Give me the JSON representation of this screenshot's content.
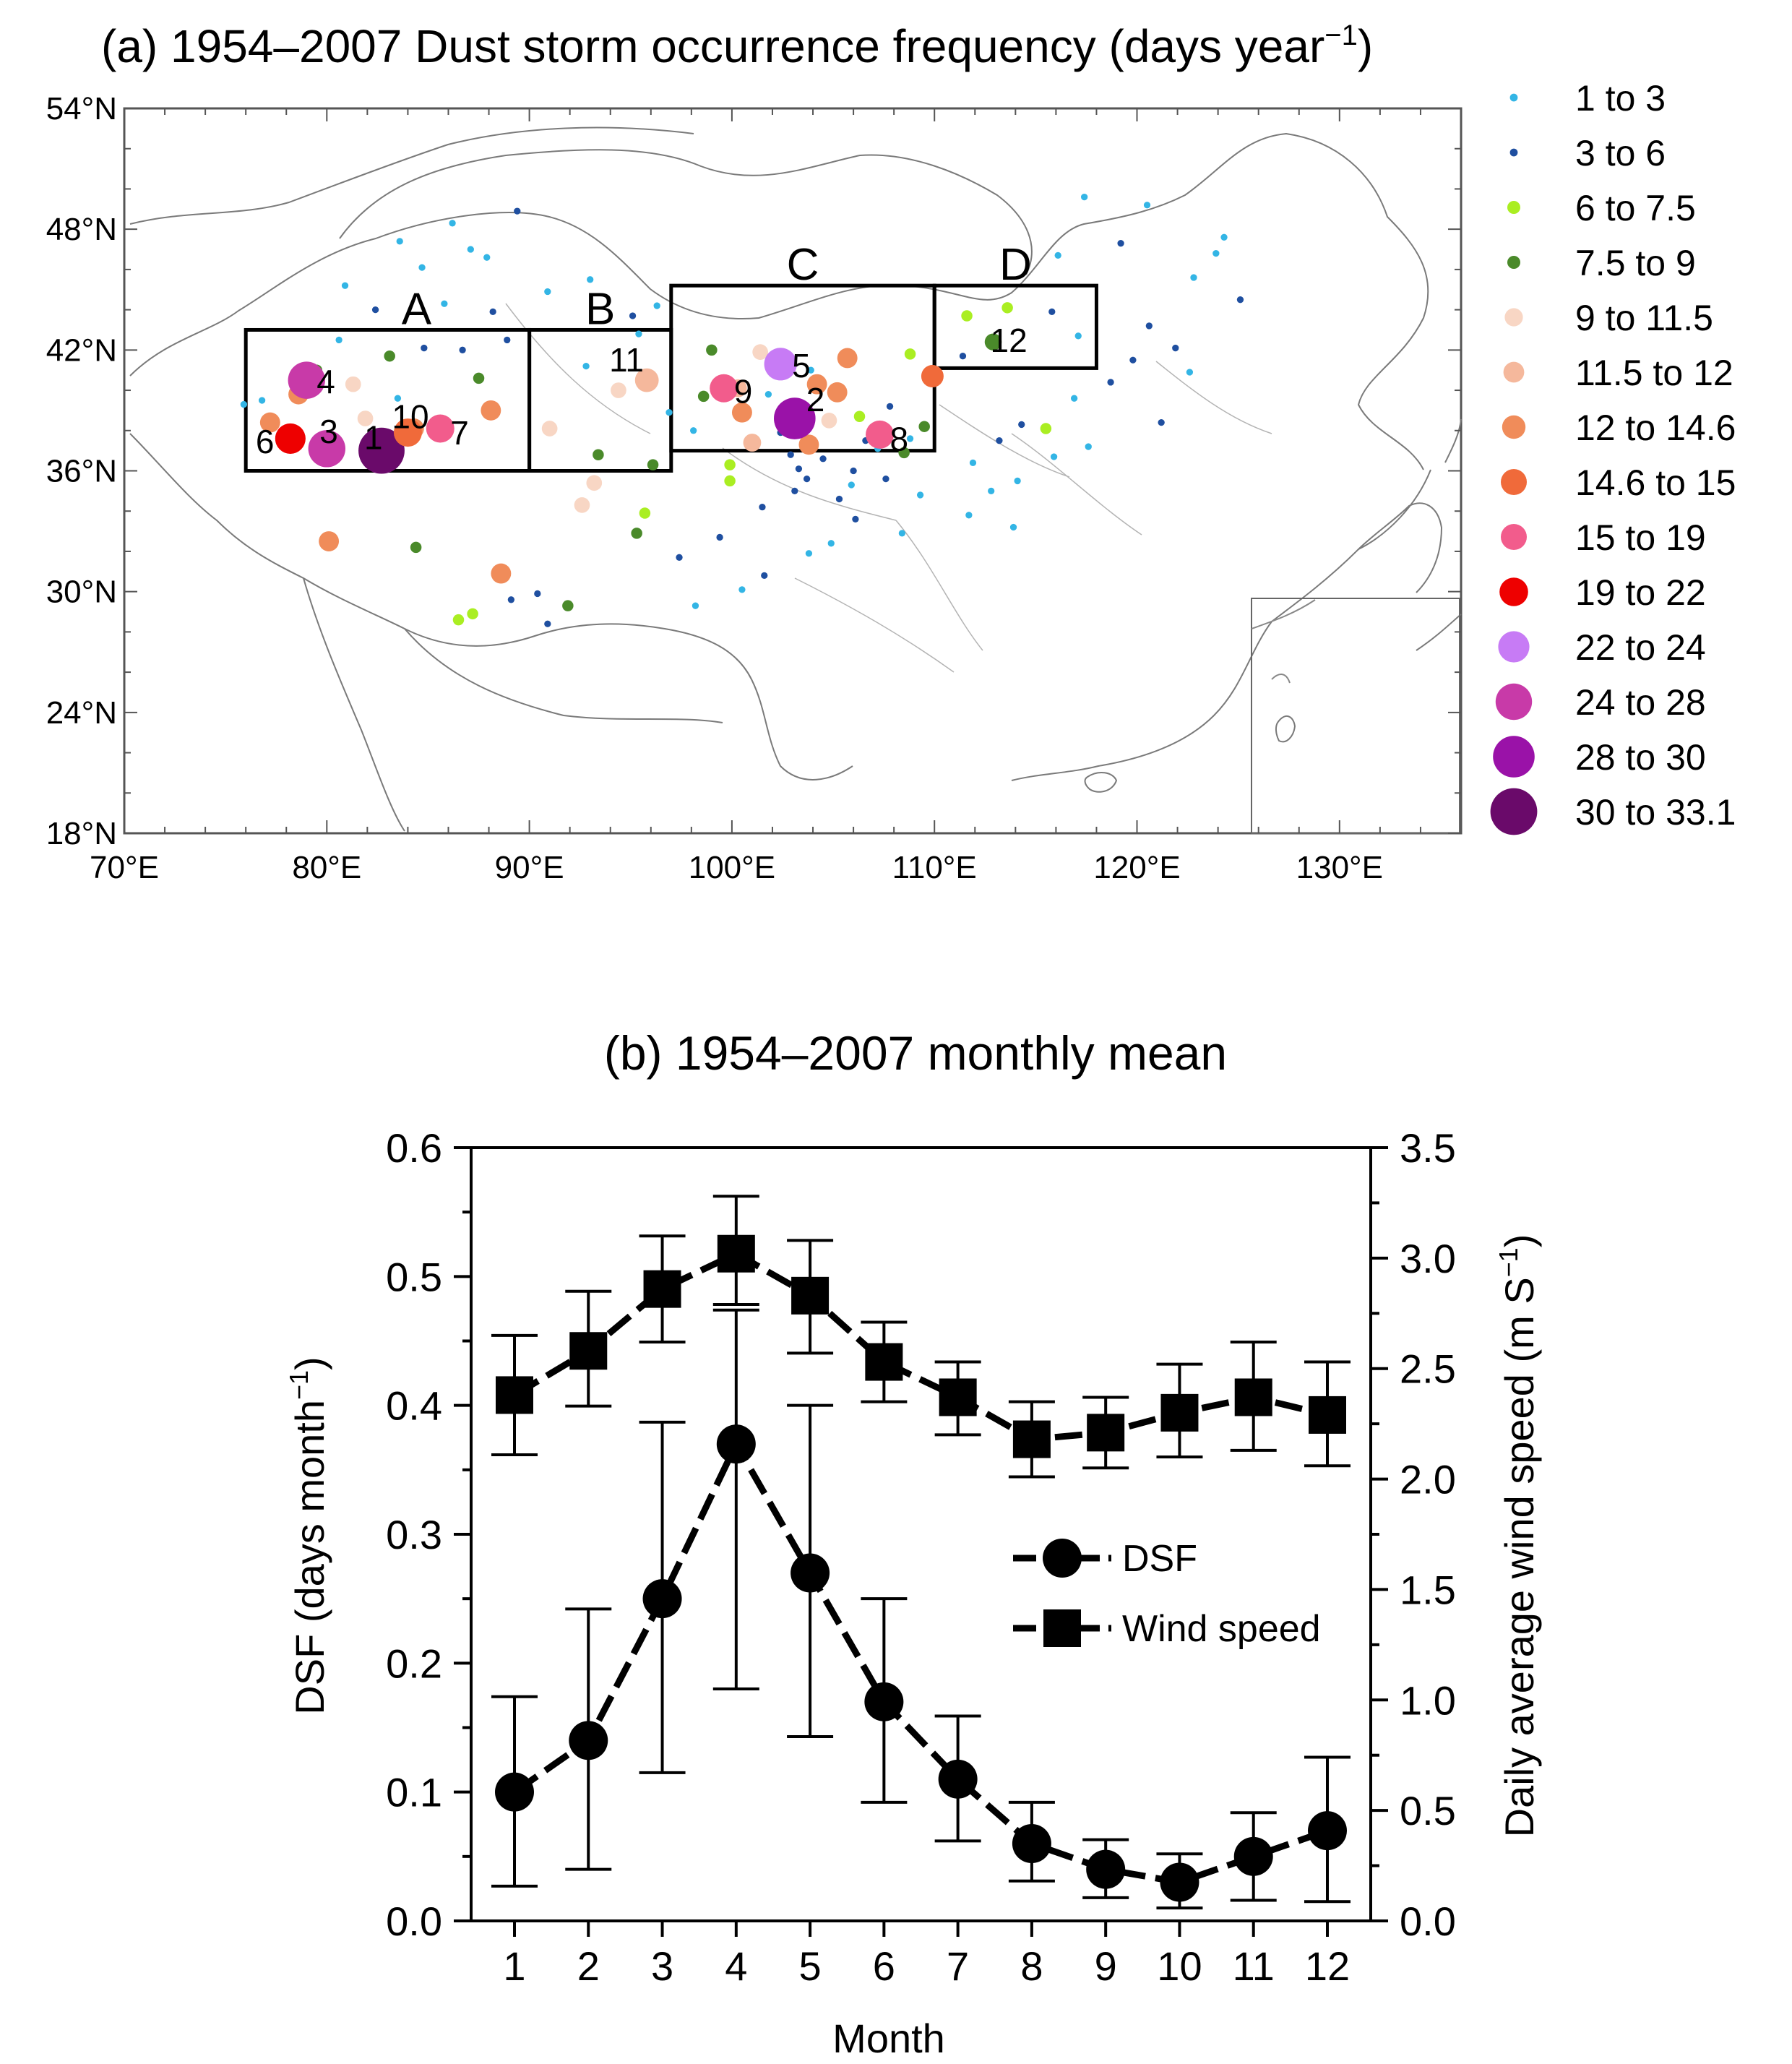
{
  "chart_data": [
    {
      "type": "map",
      "title": "(a) 1954–2007 Dust storm occurrence frequency (days year",
      "title_suffix": ")",
      "title_superscript": "−1",
      "lon_ticks": [
        "70°E",
        "80°E",
        "90°E",
        "100°E",
        "110°E",
        "120°E",
        "130°E"
      ],
      "lon_values": [
        70,
        80,
        90,
        100,
        110,
        120,
        130
      ],
      "lat_ticks": [
        "54°N",
        "48°N",
        "42°N",
        "36°N",
        "30°N",
        "24°N",
        "18°N"
      ],
      "lat_values": [
        54,
        48,
        42,
        36,
        30,
        24,
        18
      ],
      "lon_range": [
        70,
        136
      ],
      "lat_range": [
        18,
        54
      ],
      "legend": [
        {
          "label": "1  to  3",
          "color": "#33b5e5",
          "size": 3
        },
        {
          "label": "3  to  6",
          "color": "#1f4fa0",
          "size": 3
        },
        {
          "label": "6  to  7.5",
          "color": "#aaee22",
          "size": 5
        },
        {
          "label": "7.5  to  9",
          "color": "#4a8a2a",
          "size": 5
        },
        {
          "label": "9  to  11.5",
          "color": "#f8d6c4",
          "size": 7
        },
        {
          "label": "11.5  to  12",
          "color": "#f5b89c",
          "size": 8
        },
        {
          "label": "12  to  14.6",
          "color": "#f08c5a",
          "size": 9
        },
        {
          "label": "14.6  to  15",
          "color": "#f06a3a",
          "size": 10
        },
        {
          "label": "15  to  19",
          "color": "#f25c8c",
          "size": 10
        },
        {
          "label": "19  to  22",
          "color": "#ee0000",
          "size": 11
        },
        {
          "label": "22  to  24",
          "color": "#c77bf5",
          "size": 12
        },
        {
          "label": "24  to  28",
          "color": "#c83aa8",
          "size": 14
        },
        {
          "label": "28  to  30",
          "color": "#9a12a8",
          "size": 16
        },
        {
          "label": "30  to  33.1",
          "color": "#6a0a6a",
          "size": 18
        }
      ],
      "regions": [
        {
          "label": "A",
          "lon": [
            76,
            90
          ],
          "lat": [
            36,
            43
          ]
        },
        {
          "label": "B",
          "lon": [
            90,
            97
          ],
          "lat": [
            36,
            43
          ]
        },
        {
          "label": "C",
          "lon": [
            97,
            110
          ],
          "lat": [
            37,
            45.2
          ]
        },
        {
          "label": "D",
          "lon": [
            110,
            118
          ],
          "lat": [
            41.1,
            45.2
          ]
        }
      ],
      "stations": [
        {
          "label": "1",
          "lon": 82.7,
          "lat": 37.0,
          "class": 13
        },
        {
          "label": "2",
          "lon": 103.1,
          "lat": 38.6,
          "class": 12
        },
        {
          "label": "3",
          "lon": 80.0,
          "lat": 37.1,
          "class": 11
        },
        {
          "label": "4",
          "lon": 79.0,
          "lat": 40.5,
          "class": 11
        },
        {
          "label": "5",
          "lon": 102.4,
          "lat": 41.3,
          "class": 10
        },
        {
          "label": "6",
          "lon": 78.2,
          "lat": 37.6,
          "class": 9
        },
        {
          "label": "7",
          "lon": 85.6,
          "lat": 38.1,
          "class": 8
        },
        {
          "label": "8",
          "lon": 107.3,
          "lat": 37.8,
          "class": 8
        },
        {
          "label": "9",
          "lon": 99.6,
          "lat": 40.1,
          "class": 8
        },
        {
          "label": "10",
          "lon": 84.0,
          "lat": 37.9,
          "class": 7
        },
        {
          "label": "11",
          "lon": 95.8,
          "lat": 40.5,
          "class": 5
        },
        {
          "label": "12",
          "lon": 112.9,
          "lat": 42.4,
          "class": 3
        }
      ],
      "points": [
        [
          77.2,
          38.4,
          6
        ],
        [
          78.6,
          39.8,
          6
        ],
        [
          79.5,
          41.0,
          3
        ],
        [
          81.3,
          40.3,
          4
        ],
        [
          83.1,
          41.7,
          3
        ],
        [
          84.3,
          38.1,
          6
        ],
        [
          86.7,
          42.0,
          1
        ],
        [
          87.5,
          40.6,
          3
        ],
        [
          88.1,
          39.0,
          6
        ],
        [
          88.9,
          42.5,
          1
        ],
        [
          76.8,
          39.5,
          0
        ],
        [
          80.6,
          42.5,
          0
        ],
        [
          81.9,
          38.6,
          4
        ],
        [
          83.5,
          39.6,
          0
        ],
        [
          91.0,
          38.1,
          4
        ],
        [
          93.4,
          36.8,
          3
        ],
        [
          96.1,
          36.3,
          3
        ],
        [
          94.4,
          40.0,
          4
        ],
        [
          95.4,
          42.8,
          0
        ],
        [
          92.8,
          41.2,
          0
        ],
        [
          96.9,
          38.9,
          0
        ],
        [
          98.6,
          39.7,
          3
        ],
        [
          99.0,
          42.0,
          3
        ],
        [
          100.3,
          40.1,
          5
        ],
        [
          100.5,
          38.9,
          6
        ],
        [
          101.0,
          37.4,
          5
        ],
        [
          101.4,
          41.9,
          4
        ],
        [
          103.8,
          37.3,
          6
        ],
        [
          104.2,
          40.3,
          6
        ],
        [
          105.2,
          39.9,
          6
        ],
        [
          105.7,
          41.6,
          6
        ],
        [
          104.8,
          38.5,
          4
        ],
        [
          106.3,
          38.7,
          2
        ],
        [
          107.8,
          39.2,
          1
        ],
        [
          108.5,
          36.9,
          3
        ],
        [
          109.5,
          38.2,
          3
        ],
        [
          109.9,
          40.7,
          7
        ],
        [
          108.8,
          41.8,
          2
        ],
        [
          102.9,
          36.8,
          1
        ],
        [
          99.9,
          36.3,
          2
        ],
        [
          106.6,
          37.5,
          1
        ],
        [
          98.1,
          38.0,
          0
        ],
        [
          101.8,
          39.8,
          0
        ],
        [
          103.9,
          41.0,
          0
        ],
        [
          111.6,
          43.7,
          2
        ],
        [
          113.6,
          44.1,
          2
        ],
        [
          115.8,
          43.9,
          1
        ],
        [
          117.1,
          42.7,
          0
        ],
        [
          111.4,
          41.7,
          1
        ],
        [
          93.2,
          35.4,
          4
        ],
        [
          92.6,
          34.3,
          4
        ],
        [
          95.7,
          33.9,
          2
        ],
        [
          95.3,
          32.9,
          3
        ],
        [
          84.4,
          32.2,
          3
        ],
        [
          80.1,
          32.5,
          6
        ],
        [
          88.6,
          30.9,
          6
        ],
        [
          91.9,
          29.3,
          3
        ],
        [
          90.4,
          29.9,
          1
        ],
        [
          87.2,
          28.9,
          2
        ],
        [
          86.5,
          28.6,
          2
        ],
        [
          90.9,
          28.4,
          1
        ],
        [
          89.1,
          29.6,
          1
        ],
        [
          99.9,
          35.5,
          2
        ],
        [
          101.5,
          34.2,
          1
        ],
        [
          103.1,
          35.0,
          1
        ],
        [
          105.3,
          34.6,
          1
        ],
        [
          107.6,
          35.6,
          1
        ],
        [
          109.3,
          34.8,
          0
        ],
        [
          111.9,
          36.4,
          0
        ],
        [
          113.2,
          37.5,
          1
        ],
        [
          114.3,
          38.3,
          1
        ],
        [
          115.5,
          38.1,
          2
        ],
        [
          116.9,
          39.6,
          0
        ],
        [
          118.7,
          40.4,
          1
        ],
        [
          119.8,
          41.5,
          1
        ],
        [
          120.6,
          43.2,
          1
        ],
        [
          121.9,
          42.1,
          1
        ],
        [
          122.8,
          45.6,
          0
        ],
        [
          123.9,
          46.8,
          0
        ],
        [
          119.2,
          47.3,
          1
        ],
        [
          116.1,
          46.7,
          0
        ],
        [
          120.5,
          49.2,
          0
        ],
        [
          117.4,
          49.6,
          0
        ],
        [
          124.3,
          47.6,
          0
        ],
        [
          125.1,
          44.5,
          1
        ],
        [
          122.6,
          40.9,
          0
        ],
        [
          121.2,
          38.4,
          1
        ],
        [
          98.2,
          29.3,
          0
        ],
        [
          101.6,
          30.8,
          1
        ],
        [
          103.8,
          31.9,
          0
        ],
        [
          99.4,
          32.7,
          1
        ],
        [
          104.9,
          32.4,
          0
        ],
        [
          97.4,
          31.7,
          1
        ],
        [
          100.5,
          30.1,
          0
        ],
        [
          106.1,
          33.6,
          1
        ],
        [
          108.4,
          32.9,
          0
        ],
        [
          111.7,
          33.8,
          0
        ],
        [
          114.1,
          35.5,
          0
        ],
        [
          115.9,
          36.7,
          0
        ],
        [
          117.6,
          37.2,
          0
        ],
        [
          113.9,
          33.2,
          0
        ],
        [
          112.8,
          35.0,
          0
        ],
        [
          84.7,
          46.1,
          0
        ],
        [
          87.1,
          47.0,
          0
        ],
        [
          89.4,
          48.9,
          1
        ],
        [
          85.8,
          44.3,
          0
        ],
        [
          82.4,
          44.0,
          1
        ],
        [
          80.9,
          45.2,
          0
        ],
        [
          88.2,
          43.9,
          1
        ],
        [
          90.9,
          44.9,
          0
        ],
        [
          93.0,
          45.5,
          0
        ],
        [
          95.1,
          43.7,
          1
        ],
        [
          96.3,
          44.2,
          0
        ],
        [
          87.9,
          46.6,
          0
        ],
        [
          86.2,
          48.3,
          0
        ],
        [
          83.6,
          47.4,
          0
        ],
        [
          84.8,
          42.1,
          1
        ],
        [
          75.9,
          39.3,
          0
        ],
        [
          103.3,
          36.1,
          1
        ],
        [
          104.5,
          36.6,
          1
        ],
        [
          106.0,
          36.0,
          1
        ],
        [
          107.2,
          37.1,
          0
        ],
        [
          108.8,
          37.6,
          0
        ],
        [
          102.4,
          37.9,
          1
        ],
        [
          103.7,
          35.6,
          1
        ],
        [
          105.9,
          35.3,
          0
        ]
      ]
    },
    {
      "type": "line",
      "title": "(b) 1954–2007 monthly mean",
      "xlabel": "Month",
      "ylabel": "DSF (days month",
      "ylabel_superscript": "−1",
      "ylabel_suffix": ")",
      "y2label": "Daily average wind speed  (m S",
      "y2label_superscript": "−1",
      "y2label_suffix": ")",
      "x": [
        1,
        2,
        3,
        4,
        5,
        6,
        7,
        8,
        9,
        10,
        11,
        12
      ],
      "x_ticklabels": [
        "1",
        "2",
        "3",
        "4",
        "5",
        "6",
        "7",
        "8",
        "9",
        "10",
        "11",
        "12"
      ],
      "ylim": [
        0,
        0.6
      ],
      "y_ticklabels": [
        "0.0",
        "0.1",
        "0.2",
        "0.3",
        "0.4",
        "0.5",
        "0.6"
      ],
      "y2lim": [
        0,
        3.5
      ],
      "y2_ticklabels": [
        "0.0",
        "0.5",
        "1.0",
        "1.5",
        "2.0",
        "2.5",
        "3.0",
        "3.5"
      ],
      "legend": [
        "DSF",
        "Wind speed"
      ],
      "series": [
        {
          "name": "DSF",
          "marker": "circle",
          "axis": "left",
          "values": [
            0.1,
            0.14,
            0.25,
            0.37,
            0.27,
            0.17,
            0.11,
            0.06,
            0.04,
            0.03,
            0.05,
            0.07
          ],
          "err_low": [
            0.027,
            0.04,
            0.115,
            0.18,
            0.143,
            0.092,
            0.062,
            0.031,
            0.018,
            0.01,
            0.016,
            0.015
          ],
          "err_high": [
            0.174,
            0.242,
            0.387,
            0.474,
            0.4,
            0.25,
            0.159,
            0.092,
            0.063,
            0.052,
            0.084,
            0.127
          ]
        },
        {
          "name": "Wind speed",
          "marker": "square",
          "axis": "right",
          "values": [
            2.38,
            2.58,
            2.86,
            3.02,
            2.83,
            2.53,
            2.37,
            2.18,
            2.21,
            2.3,
            2.37,
            2.29
          ],
          "err_low": [
            2.11,
            2.33,
            2.62,
            2.79,
            2.57,
            2.35,
            2.2,
            2.01,
            2.05,
            2.1,
            2.13,
            2.06
          ],
          "err_high": [
            2.65,
            2.85,
            3.1,
            3.28,
            3.08,
            2.71,
            2.53,
            2.35,
            2.37,
            2.52,
            2.62,
            2.53
          ]
        }
      ]
    }
  ]
}
